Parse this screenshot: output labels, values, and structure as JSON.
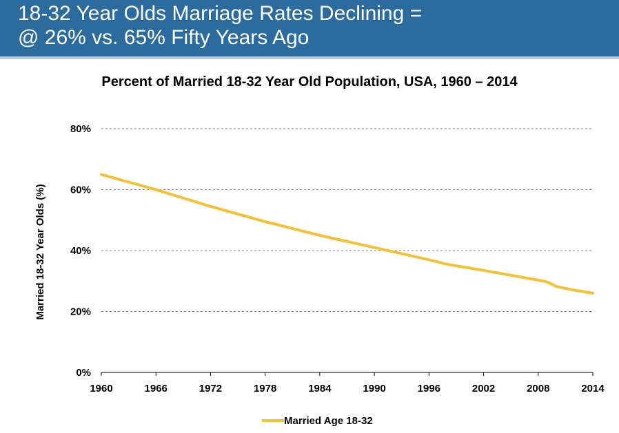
{
  "slide": {
    "title_line1": "18-32 Year Olds Marriage Rates Declining =",
    "title_line2": "@ 26% vs. 65% Fifty Years Ago"
  },
  "colors": {
    "banner": "#2b6b9e",
    "series": "#f5c033",
    "grid": "#7f7f7f"
  },
  "chart_data": {
    "type": "line",
    "title": "Percent of Married 18-32 Year Old Population, USA, 1960 – 2014",
    "xlabel": "",
    "ylabel": "Married 18-32 Year Olds (%)",
    "xlim": [
      1960,
      2014
    ],
    "ylim": [
      0,
      80
    ],
    "x_ticks": [
      "1960",
      "1966",
      "1972",
      "1978",
      "1984",
      "1990",
      "1996",
      "2002",
      "2008",
      "2014"
    ],
    "y_ticks": [
      "0%",
      "20%",
      "40%",
      "60%",
      "80%"
    ],
    "grid": "horizontal dashed",
    "legend_position": "bottom",
    "series": [
      {
        "name": "Married Age 18-32",
        "x": [
          1960,
          1966,
          1972,
          1978,
          1980,
          1984,
          1990,
          1996,
          1998,
          2002,
          2008,
          2009,
          2010,
          2012,
          2014
        ],
        "values": [
          65,
          60,
          54.5,
          49.5,
          48,
          45,
          41,
          37,
          35.5,
          33.5,
          30.3,
          29.7,
          28.2,
          27,
          26
        ]
      }
    ]
  }
}
